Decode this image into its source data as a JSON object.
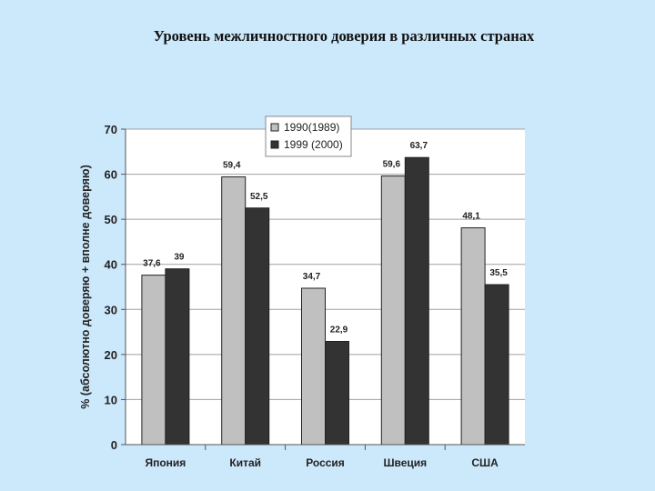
{
  "slide": {
    "title": "Уровень межличностного доверия в различных странах"
  },
  "chart_data": {
    "type": "bar",
    "title": "",
    "xlabel": "",
    "ylabel": "% (абсолютно доверяю + вполне доверяю)",
    "categories": [
      "Япония",
      "Китай",
      "Россия",
      "Швеция",
      "США"
    ],
    "series": [
      {
        "name": "1990(1989)",
        "values": [
          37.6,
          59.4,
          34.7,
          59.6,
          48.1
        ],
        "labels": [
          "37,6",
          "59,4",
          "34,7",
          "59,6",
          "48,1"
        ],
        "color": "#c0c0c0"
      },
      {
        "name": "1999 (2000)",
        "values": [
          39,
          52.5,
          22.9,
          63.7,
          35.5
        ],
        "labels": [
          "39",
          "52,5",
          "22,9",
          "63,7",
          "35,5"
        ],
        "color": "#333333"
      }
    ],
    "ylim": [
      0,
      70
    ],
    "yticks": [
      0,
      10,
      20,
      30,
      40,
      50,
      60,
      70
    ],
    "grid": true,
    "legend": "top-center",
    "plot_background": "#ffffff",
    "gridline_color": "#a0a0a0"
  }
}
